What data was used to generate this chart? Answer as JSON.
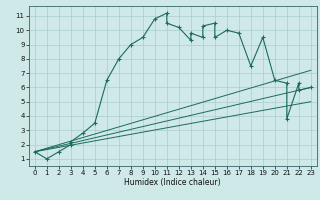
{
  "xlabel": "Humidex (Indice chaleur)",
  "bg_color": "#cfe8e8",
  "grid_color": "#aacccc",
  "line_color": "#1a6b5a",
  "xlim": [
    -0.5,
    23.5
  ],
  "ylim": [
    0.5,
    11.7
  ],
  "xticks": [
    0,
    1,
    2,
    3,
    4,
    5,
    6,
    7,
    8,
    9,
    10,
    11,
    12,
    13,
    14,
    15,
    16,
    17,
    18,
    19,
    20,
    21,
    22,
    23
  ],
  "yticks": [
    1,
    2,
    3,
    4,
    5,
    6,
    7,
    8,
    9,
    10,
    11
  ],
  "main_x": [
    0,
    1,
    2,
    3,
    3,
    4,
    5,
    6,
    7,
    8,
    9,
    10,
    11,
    11,
    12,
    13,
    13,
    14,
    14,
    15,
    15,
    16,
    17,
    18,
    19,
    20,
    21,
    21,
    22,
    22,
    23
  ],
  "main_y": [
    1.5,
    1.0,
    1.5,
    2.0,
    2.2,
    2.8,
    3.5,
    6.5,
    8.0,
    9.0,
    9.5,
    10.8,
    11.2,
    10.5,
    10.2,
    9.3,
    9.8,
    9.5,
    10.3,
    10.5,
    9.5,
    10.0,
    9.8,
    7.5,
    9.5,
    6.5,
    6.3,
    3.8,
    6.3,
    5.8,
    6.0
  ],
  "line1_x": [
    0,
    23
  ],
  "line1_y": [
    1.5,
    5.0
  ],
  "line2_x": [
    0,
    23
  ],
  "line2_y": [
    1.5,
    6.0
  ],
  "line3_x": [
    0,
    23
  ],
  "line3_y": [
    1.5,
    7.2
  ]
}
